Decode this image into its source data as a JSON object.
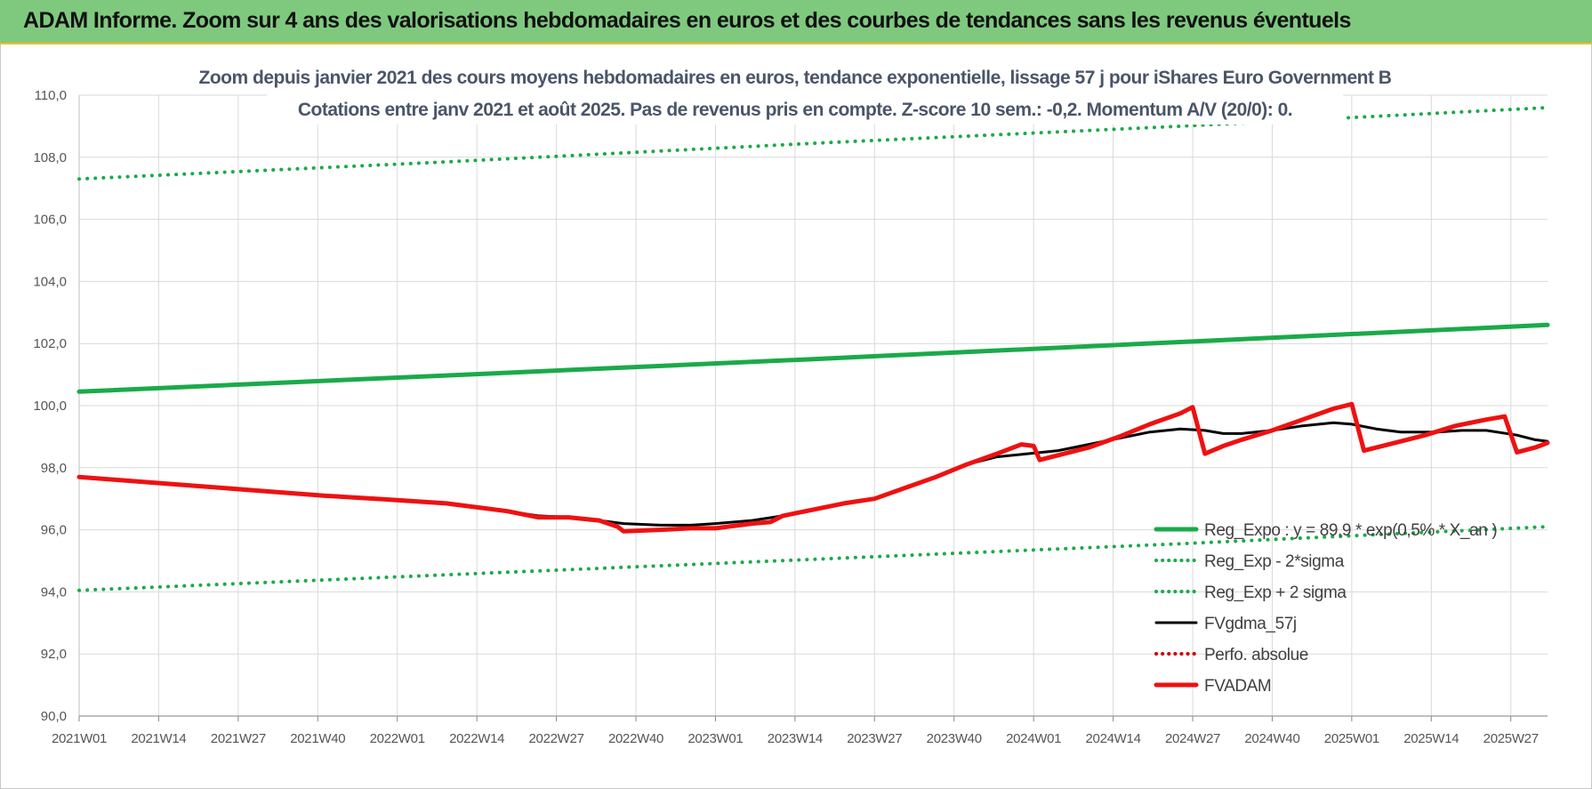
{
  "banner": {
    "title": "ADAM Informe. Zoom sur 4 ans des valorisations hebdomadaires en euros et des courbes de tendances sans les revenus éventuels"
  },
  "colors": {
    "banner_bg": "#7fc97f",
    "trend_green": "#1aaa4a",
    "fvgdma": "#000000",
    "fvadam": "#ee1111",
    "perfo": "#cc0000"
  },
  "chart_data": {
    "type": "line",
    "title": "Zoom depuis janvier 2021 des cours moyens hebdomadaires en euros, tendance exponentielle, lissage 57 j pour iShares Euro Government B",
    "subtitle": "Cotations entre janv 2021 et août 2025.  Pas de revenus pris en compte. Z-score 10 sem.: -0,2. Momentum A/V (20/0): 0.",
    "xlabel": "",
    "ylabel": "",
    "ylim": [
      90,
      110
    ],
    "x_range_weeks": [
      0,
      240
    ],
    "yticks": [
      "90,0",
      "92,0",
      "94,0",
      "96,0",
      "98,0",
      "100,0",
      "102,0",
      "104,0",
      "106,0",
      "108,0",
      "110,0"
    ],
    "xticks": [
      {
        "week": 0,
        "label": "2021W01"
      },
      {
        "week": 13,
        "label": "2021W14"
      },
      {
        "week": 26,
        "label": "2021W27"
      },
      {
        "week": 39,
        "label": "2021W40"
      },
      {
        "week": 52,
        "label": "2022W01"
      },
      {
        "week": 65,
        "label": "2022W14"
      },
      {
        "week": 78,
        "label": "2022W27"
      },
      {
        "week": 91,
        "label": "2022W40"
      },
      {
        "week": 104,
        "label": "2023W01"
      },
      {
        "week": 117,
        "label": "2023W14"
      },
      {
        "week": 130,
        "label": "2023W27"
      },
      {
        "week": 143,
        "label": "2023W40"
      },
      {
        "week": 156,
        "label": "2024W01"
      },
      {
        "week": 169,
        "label": "2024W14"
      },
      {
        "week": 182,
        "label": "2024W27"
      },
      {
        "week": 195,
        "label": "2024W40"
      },
      {
        "week": 208,
        "label": "2025W01"
      },
      {
        "week": 221,
        "label": "2025W14"
      },
      {
        "week": 234,
        "label": "2025W27"
      }
    ],
    "grid": true,
    "legend_position": "bottom-right",
    "series": [
      {
        "name": "Reg_Expo : y = 89,9 * exp(0,5% * X_an )",
        "style": "solid-thick",
        "color": "#1aaa4a",
        "points": [
          [
            0,
            100.45
          ],
          [
            60,
            100.97
          ],
          [
            120,
            101.5
          ],
          [
            180,
            102.05
          ],
          [
            240,
            102.6
          ]
        ]
      },
      {
        "name": "Reg_Exp - 2*sigma",
        "style": "dotted",
        "color": "#1aaa4a",
        "points": [
          [
            0,
            94.05
          ],
          [
            60,
            94.55
          ],
          [
            120,
            95.05
          ],
          [
            180,
            95.55
          ],
          [
            240,
            96.1
          ]
        ]
      },
      {
        "name": "Reg_Exp + 2 sigma",
        "style": "dotted",
        "color": "#1aaa4a",
        "points": [
          [
            0,
            107.3
          ],
          [
            60,
            107.85
          ],
          [
            120,
            108.45
          ],
          [
            180,
            109.0
          ],
          [
            240,
            109.6
          ]
        ]
      },
      {
        "name": "FVgdma_57j",
        "style": "solid",
        "color": "#000000",
        "points": [
          [
            0,
            97.7
          ],
          [
            10,
            97.55
          ],
          [
            20,
            97.4
          ],
          [
            30,
            97.25
          ],
          [
            40,
            97.1
          ],
          [
            50,
            96.98
          ],
          [
            60,
            96.85
          ],
          [
            70,
            96.6
          ],
          [
            75,
            96.45
          ],
          [
            80,
            96.4
          ],
          [
            85,
            96.3
          ],
          [
            89,
            96.2
          ],
          [
            95,
            96.15
          ],
          [
            100,
            96.15
          ],
          [
            104,
            96.2
          ],
          [
            110,
            96.3
          ],
          [
            115,
            96.45
          ],
          [
            120,
            96.65
          ],
          [
            125,
            96.85
          ],
          [
            130,
            97.0
          ],
          [
            135,
            97.35
          ],
          [
            140,
            97.7
          ],
          [
            145,
            98.1
          ],
          [
            150,
            98.35
          ],
          [
            155,
            98.45
          ],
          [
            160,
            98.55
          ],
          [
            165,
            98.75
          ],
          [
            170,
            98.95
          ],
          [
            175,
            99.15
          ],
          [
            180,
            99.25
          ],
          [
            184,
            99.2
          ],
          [
            187,
            99.1
          ],
          [
            190,
            99.1
          ],
          [
            195,
            99.2
          ],
          [
            200,
            99.35
          ],
          [
            205,
            99.45
          ],
          [
            208,
            99.4
          ],
          [
            212,
            99.25
          ],
          [
            216,
            99.15
          ],
          [
            222,
            99.15
          ],
          [
            226,
            99.2
          ],
          [
            230,
            99.2
          ],
          [
            235,
            99.05
          ],
          [
            238,
            98.9
          ],
          [
            240,
            98.85
          ]
        ]
      },
      {
        "name": "Perfo. absolue",
        "style": "dotted",
        "color": "#cc0000",
        "points": []
      },
      {
        "name": "FVADAM",
        "style": "solid-thick",
        "color": "#ee1111",
        "points": [
          [
            0,
            97.7
          ],
          [
            10,
            97.55
          ],
          [
            20,
            97.4
          ],
          [
            30,
            97.25
          ],
          [
            40,
            97.1
          ],
          [
            50,
            96.98
          ],
          [
            60,
            96.85
          ],
          [
            70,
            96.6
          ],
          [
            75,
            96.4
          ],
          [
            80,
            96.4
          ],
          [
            85,
            96.3
          ],
          [
            88,
            96.1
          ],
          [
            89,
            95.95
          ],
          [
            95,
            96.0
          ],
          [
            100,
            96.05
          ],
          [
            104,
            96.05
          ],
          [
            110,
            96.2
          ],
          [
            113,
            96.25
          ],
          [
            115,
            96.45
          ],
          [
            120,
            96.65
          ],
          [
            125,
            96.85
          ],
          [
            130,
            97.0
          ],
          [
            135,
            97.35
          ],
          [
            140,
            97.7
          ],
          [
            145,
            98.1
          ],
          [
            150,
            98.45
          ],
          [
            154,
            98.75
          ],
          [
            156,
            98.7
          ],
          [
            157,
            98.25
          ],
          [
            160,
            98.4
          ],
          [
            165,
            98.65
          ],
          [
            170,
            99.0
          ],
          [
            175,
            99.4
          ],
          [
            180,
            99.75
          ],
          [
            182,
            99.95
          ],
          [
            184,
            98.45
          ],
          [
            187,
            98.7
          ],
          [
            190,
            98.9
          ],
          [
            195,
            99.2
          ],
          [
            200,
            99.55
          ],
          [
            205,
            99.9
          ],
          [
            208,
            100.05
          ],
          [
            210,
            98.55
          ],
          [
            215,
            98.8
          ],
          [
            220,
            99.05
          ],
          [
            225,
            99.35
          ],
          [
            230,
            99.55
          ],
          [
            233,
            99.65
          ],
          [
            235,
            98.5
          ],
          [
            238,
            98.65
          ],
          [
            240,
            98.8
          ]
        ]
      }
    ]
  }
}
